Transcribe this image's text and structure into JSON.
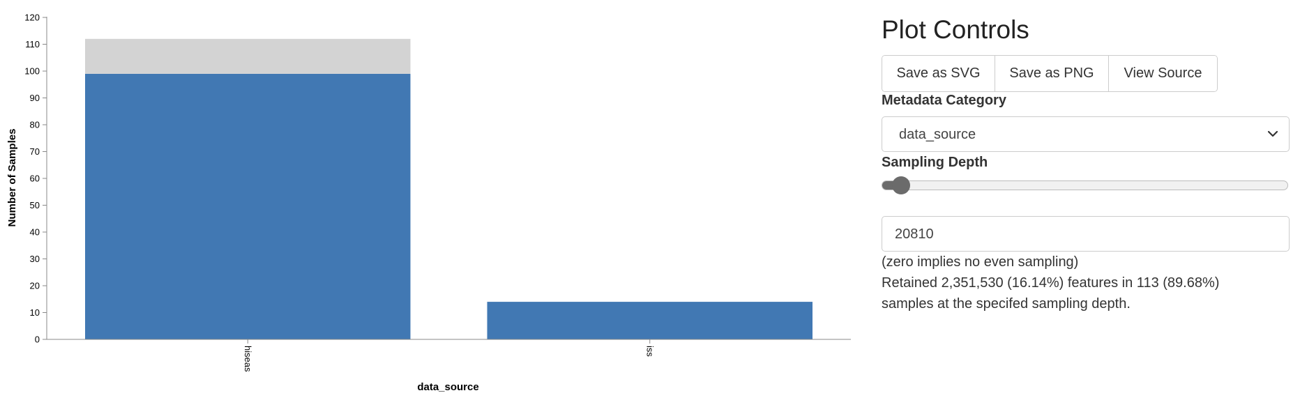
{
  "chart_data": {
    "type": "bar",
    "stacked": true,
    "categories": [
      "hiseas",
      "iss"
    ],
    "series": [
      {
        "values": [
          99,
          14
        ],
        "color": "#4178b3"
      },
      {
        "values": [
          13,
          0
        ],
        "color": "#d3d3d3"
      }
    ],
    "xlabel": "data_source",
    "ylabel": "Number of Samples",
    "ylim": [
      0,
      120
    ],
    "yticks": [
      0,
      10,
      20,
      30,
      40,
      50,
      60,
      70,
      80,
      90,
      100,
      110,
      120
    ],
    "grid": false
  },
  "controls": {
    "title": "Plot Controls",
    "buttons": {
      "save_svg": "Save as SVG",
      "save_png": "Save as PNG",
      "view_source": "View Source"
    },
    "metadata_label": "Metadata Category",
    "metadata_value": "data_source",
    "sampling_label": "Sampling Depth",
    "sampling_slider_fraction": 0.02,
    "sampling_value": "20810",
    "hint": "(zero implies no even sampling)",
    "retained_line1": "Retained 2,351,530 (16.14%) features in 113 (89.68%)",
    "retained_line2": "samples at the specifed sampling depth."
  },
  "colors": {
    "bar_primary": "#4178b3",
    "bar_remainder": "#d3d3d3",
    "slider": "#6b6b6b"
  }
}
